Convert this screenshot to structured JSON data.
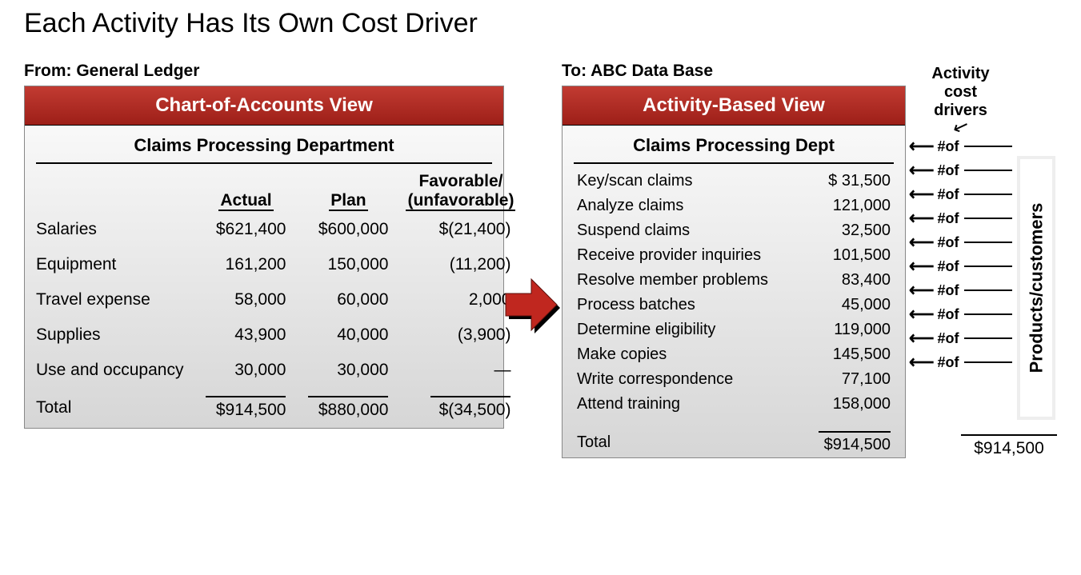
{
  "title": "Each Activity Has Its Own Cost Driver",
  "left": {
    "source_label": "From:  General Ledger",
    "header": "Chart-of-Accounts View",
    "subheader": "Claims Processing Department",
    "header_bg_gradient": [
      "#c23b32",
      "#9d1f18"
    ],
    "columns": {
      "c1": "",
      "c2": "Actual",
      "c3": "Plan",
      "c4": "Favorable/",
      "c4b": "(unfavorable)"
    },
    "rows": [
      {
        "label": "Salaries",
        "actual": "$621,400",
        "plan": "$600,000",
        "var": "$(21,400)"
      },
      {
        "label": "Equipment",
        "actual": "161,200",
        "plan": "150,000",
        "var": "(11,200)"
      },
      {
        "label": "Travel expense",
        "actual": "58,000",
        "plan": "60,000",
        "var": "2,000"
      },
      {
        "label": "Supplies",
        "actual": "43,900",
        "plan": "40,000",
        "var": "(3,900)"
      },
      {
        "label": "Use and occupancy",
        "actual": "30,000",
        "plan": "30,000",
        "var": "—"
      }
    ],
    "total": {
      "label": "Total",
      "actual": "$914,500",
      "plan": "$880,000",
      "var": "$(34,500)"
    }
  },
  "arrow": {
    "fill": "#c0271f",
    "shadow": "#000000"
  },
  "right": {
    "source_label": "To:  ABC Data Base",
    "header": "Activity-Based View",
    "subheader": "Claims Processing Dept",
    "rows": [
      {
        "label": "Key/scan claims",
        "value": "$  31,500"
      },
      {
        "label": "Analyze claims",
        "value": "121,000"
      },
      {
        "label": "Suspend claims",
        "value": "32,500"
      },
      {
        "label": "Receive provider inquiries",
        "value": "101,500"
      },
      {
        "label": "Resolve member problems",
        "value": "83,400"
      },
      {
        "label": "Process batches",
        "value": "45,000"
      },
      {
        "label": "Determine eligibility",
        "value": "119,000"
      },
      {
        "label": "Make copies",
        "value": "145,500"
      },
      {
        "label": "Write correspondence",
        "value": "77,100"
      },
      {
        "label": "Attend training",
        "value": "158,000"
      }
    ],
    "total": {
      "label": "Total",
      "value": "$914,500"
    }
  },
  "drivers": {
    "title_l1": "Activity",
    "title_l2": "cost",
    "title_l3": "drivers",
    "tag": "#of",
    "count": 10
  },
  "products": {
    "label": "Products/customers",
    "total": "$914,500"
  }
}
